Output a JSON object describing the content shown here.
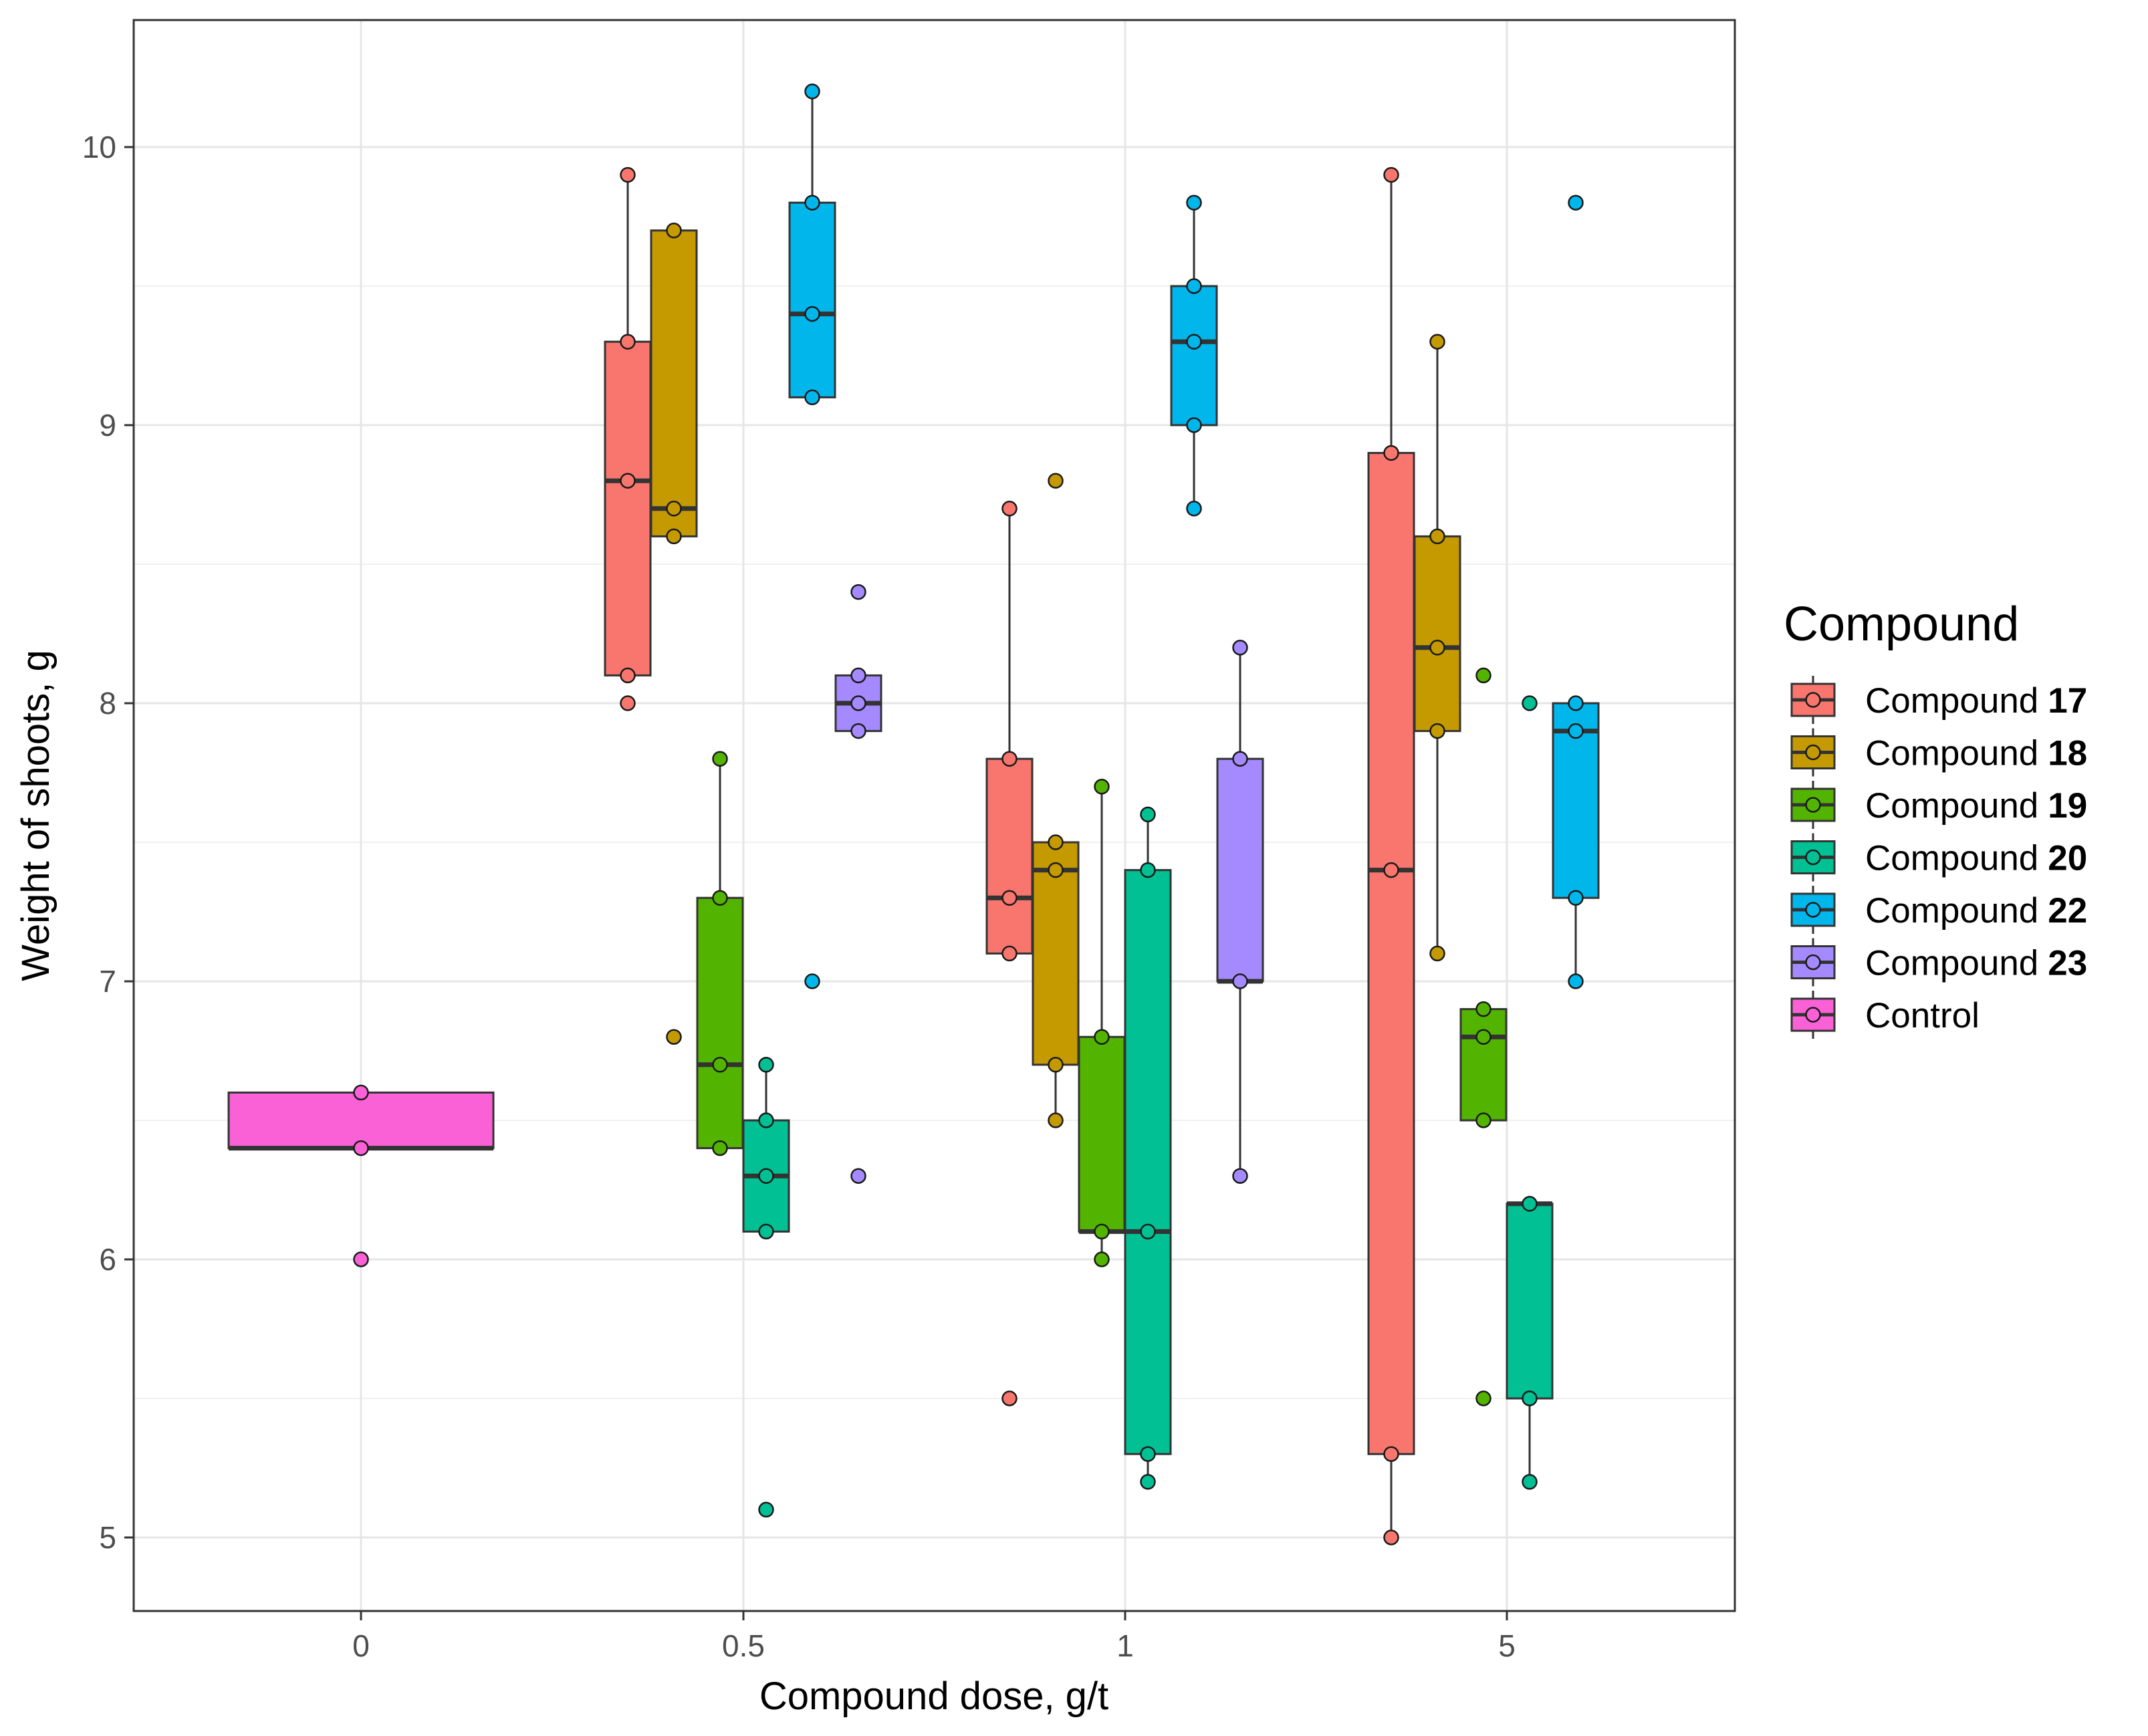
{
  "chart_data": {
    "type": "box",
    "xlabel": "Compound dose, g/t",
    "ylabel": "Weight of shoots, g",
    "categories": [
      "0",
      "0.5",
      "1",
      "5"
    ],
    "y_ticks": [
      5,
      6,
      7,
      8,
      9,
      10
    ],
    "ylim": [
      4.75,
      10.5
    ],
    "grid": true,
    "legend": {
      "title": "Compound",
      "position": "right",
      "items": [
        {
          "prefix": "Compound",
          "number": "17",
          "color": "#F8766D"
        },
        {
          "prefix": "Compound",
          "number": "18",
          "color": "#C49A00"
        },
        {
          "prefix": "Compound",
          "number": "19",
          "color": "#53B400"
        },
        {
          "prefix": "Compound",
          "number": "20",
          "color": "#00C094"
        },
        {
          "prefix": "Compound",
          "number": "22",
          "color": "#00B6EB"
        },
        {
          "prefix": "Compound",
          "number": "23",
          "color": "#A58AFF"
        },
        {
          "prefix": "Control",
          "number": "",
          "color": "#FB61D7"
        }
      ]
    },
    "boxes": [
      {
        "category": "0",
        "series": "Control",
        "color": "#FB61D7",
        "q1": 6.4,
        "median": 6.4,
        "q3": 6.6,
        "whisker_low": 6.4,
        "whisker_high": 6.6,
        "points": [
          6.6,
          6.4,
          6.0
        ]
      },
      {
        "category": "0.5",
        "series": "Compound 17",
        "color": "#F8766D",
        "q1": 8.1,
        "median": 8.8,
        "q3": 9.3,
        "whisker_low": 8.1,
        "whisker_high": 9.9,
        "points": [
          9.9,
          9.3,
          8.8,
          8.1,
          8.0
        ]
      },
      {
        "category": "0.5",
        "series": "Compound 18",
        "color": "#C49A00",
        "q1": 8.6,
        "median": 8.7,
        "q3": 9.7,
        "whisker_low": 8.6,
        "whisker_high": 9.7,
        "points": [
          9.7,
          8.7,
          8.6,
          6.8
        ]
      },
      {
        "category": "0.5",
        "series": "Compound 19",
        "color": "#53B400",
        "q1": 6.4,
        "median": 6.7,
        "q3": 7.3,
        "whisker_low": 6.4,
        "whisker_high": 7.8,
        "points": [
          7.8,
          7.3,
          6.7,
          6.4
        ]
      },
      {
        "category": "0.5",
        "series": "Compound 20",
        "color": "#00C094",
        "q1": 6.1,
        "median": 6.3,
        "q3": 6.5,
        "whisker_low": 6.1,
        "whisker_high": 6.7,
        "points": [
          6.7,
          6.5,
          6.3,
          6.1,
          5.1
        ]
      },
      {
        "category": "0.5",
        "series": "Compound 22",
        "color": "#00B6EB",
        "q1": 9.1,
        "median": 9.4,
        "q3": 9.8,
        "whisker_low": 9.1,
        "whisker_high": 10.2,
        "points": [
          10.2,
          9.8,
          9.4,
          9.1,
          7.0
        ]
      },
      {
        "category": "0.5",
        "series": "Compound 23",
        "color": "#A58AFF",
        "q1": 7.9,
        "median": 8.0,
        "q3": 8.1,
        "whisker_low": 7.9,
        "whisker_high": 8.1,
        "points": [
          8.4,
          8.1,
          8.0,
          7.9,
          6.3
        ]
      },
      {
        "category": "1",
        "series": "Compound 17",
        "color": "#F8766D",
        "q1": 7.1,
        "median": 7.3,
        "q3": 7.8,
        "whisker_low": 7.1,
        "whisker_high": 8.7,
        "points": [
          8.7,
          7.8,
          7.3,
          7.1,
          5.5
        ]
      },
      {
        "category": "1",
        "series": "Compound 18",
        "color": "#C49A00",
        "q1": 6.7,
        "median": 7.4,
        "q3": 7.5,
        "whisker_low": 6.5,
        "whisker_high": 7.5,
        "points": [
          8.8,
          7.5,
          7.4,
          6.7,
          6.5
        ]
      },
      {
        "category": "1",
        "series": "Compound 19",
        "color": "#53B400",
        "q1": 6.1,
        "median": 6.1,
        "q3": 6.8,
        "whisker_low": 6.0,
        "whisker_high": 7.7,
        "points": [
          7.7,
          6.8,
          6.1,
          6.0
        ]
      },
      {
        "category": "1",
        "series": "Compound 20",
        "color": "#00C094",
        "q1": 5.3,
        "median": 6.1,
        "q3": 7.4,
        "whisker_low": 5.2,
        "whisker_high": 7.6,
        "points": [
          7.6,
          7.4,
          6.1,
          5.3,
          5.2
        ]
      },
      {
        "category": "1",
        "series": "Compound 22",
        "color": "#00B6EB",
        "q1": 9.0,
        "median": 9.3,
        "q3": 9.5,
        "whisker_low": 8.7,
        "whisker_high": 9.8,
        "points": [
          9.8,
          9.5,
          9.3,
          9.0,
          8.7
        ]
      },
      {
        "category": "1",
        "series": "Compound 23",
        "color": "#A58AFF",
        "q1": 7.0,
        "median": 7.0,
        "q3": 7.8,
        "whisker_low": 6.3,
        "whisker_high": 8.2,
        "points": [
          8.2,
          7.8,
          7.0,
          6.3
        ]
      },
      {
        "category": "5",
        "series": "Compound 17",
        "color": "#F8766D",
        "q1": 5.3,
        "median": 7.4,
        "q3": 8.9,
        "whisker_low": 5.0,
        "whisker_high": 9.9,
        "points": [
          9.9,
          8.9,
          7.4,
          5.3,
          5.0
        ]
      },
      {
        "category": "5",
        "series": "Compound 18",
        "color": "#C49A00",
        "q1": 7.9,
        "median": 8.2,
        "q3": 8.6,
        "whisker_low": 7.1,
        "whisker_high": 9.3,
        "points": [
          9.3,
          8.6,
          8.2,
          7.9,
          7.1
        ]
      },
      {
        "category": "5",
        "series": "Compound 19",
        "color": "#53B400",
        "q1": 6.5,
        "median": 6.8,
        "q3": 6.9,
        "whisker_low": 6.5,
        "whisker_high": 6.9,
        "points": [
          8.1,
          6.9,
          6.8,
          6.5,
          5.5
        ]
      },
      {
        "category": "5",
        "series": "Compound 20",
        "color": "#00C094",
        "q1": 5.5,
        "median": 6.2,
        "q3": 6.2,
        "whisker_low": 5.2,
        "whisker_high": 6.2,
        "points": [
          8.0,
          6.2,
          5.5,
          5.2
        ]
      },
      {
        "category": "5",
        "series": "Compound 22",
        "color": "#00B6EB",
        "q1": 7.3,
        "median": 7.9,
        "q3": 8.0,
        "whisker_low": 7.0,
        "whisker_high": 8.0,
        "points": [
          9.8,
          8.0,
          7.9,
          7.3,
          7.0
        ]
      }
    ]
  }
}
